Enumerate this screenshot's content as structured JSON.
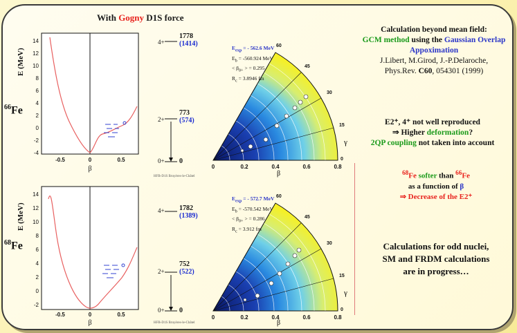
{
  "title": {
    "prefix": "With ",
    "highlight": "Gogny",
    "suffix": " D1S force"
  },
  "colors": {
    "accent_red": "#e8231e",
    "accent_green": "#1a9a1a",
    "accent_blue": "#2a35c8",
    "curve": "#e86060"
  },
  "nuclei": {
    "top": {
      "mass": "66",
      "symbol": "Fe"
    },
    "bottom": {
      "mass": "68",
      "symbol": "Fe"
    }
  },
  "axis": {
    "energy": "E (MeV)",
    "beta": "β",
    "gamma": "γ"
  },
  "top_plot": {
    "yticks": [
      "14",
      "12",
      "10",
      "8",
      "6",
      "4",
      "2",
      "0",
      "-2",
      "-4"
    ],
    "xticks": [
      "-0.5",
      "0",
      "0.5"
    ],
    "caption": "HFB-D1S Bruyères-le-Châtel",
    "levels": [
      {
        "spin": "4+",
        "calc": "1778",
        "exp": "(1414)"
      },
      {
        "spin": "2+",
        "calc": "773",
        "exp": "(574)"
      },
      {
        "spin": "0+",
        "calc": "0",
        "exp": ""
      }
    ],
    "info": {
      "e_exp": "E",
      "e_exp_sub": "exp",
      "e_exp_val": " = - 562.6 MeV",
      "e_b": "E",
      "e_b_sub": "b",
      "e_b_val": " = -560.924 MeV",
      "beta": "< β",
      "beta_sub": "0+",
      "beta_val": " > = 0.295",
      "r": "R",
      "r_sub": "c",
      "r_val": " = 3.8946 fm"
    },
    "polar_ticks": [
      "0",
      "0.2",
      "0.4",
      "0.6",
      "0.8"
    ],
    "angle_ticks": [
      "60",
      "45",
      "30",
      "15",
      "0"
    ]
  },
  "bottom_plot": {
    "yticks": [
      "14",
      "12",
      "10",
      "8",
      "6",
      "4",
      "2",
      "0",
      "-2"
    ],
    "xticks": [
      "-0.5",
      "0",
      "0.5"
    ],
    "caption": "HFB-D1S Bruyères-le-Châtel",
    "levels": [
      {
        "spin": "4+",
        "calc": "1782",
        "exp": "(1389)"
      },
      {
        "spin": "2+",
        "calc": "752",
        "exp": "(522)"
      },
      {
        "spin": "0+",
        "calc": "0",
        "exp": ""
      }
    ],
    "info": {
      "e_exp": "E",
      "e_exp_sub": "exp",
      "e_exp_val": " = - 572.7 MeV",
      "e_b": "E",
      "e_b_sub": "b",
      "e_b_val": " = -570.542 MeV",
      "beta": "< β",
      "beta_sub": "0+",
      "beta_val": " > = 0.286",
      "r": "R",
      "r_sub": "c",
      "r_val": " = 3.912 fm"
    },
    "polar_ticks": [
      "0",
      "0.2",
      "0.4",
      "0.6",
      "0.8"
    ],
    "angle_ticks": [
      "60",
      "45",
      "30",
      "15",
      "0"
    ]
  },
  "right": {
    "calc_title": "Calculation beyond mean field:",
    "gcm": "GCM method",
    "using": " using the ",
    "gaussian": "Gaussian Overlap Appoximation",
    "authors": "J.Libert, M.Girod, J.-P.Delaroche,",
    "ref_pre": "Phys.Rev. ",
    "ref_vol": "C60",
    "ref_post": ", 054301 (1999)",
    "e2_line": "E2⁺, 4⁺ not well reproduced",
    "higher_pre": "⇒ Higher ",
    "deformation": "deformation",
    "higher_post": "?",
    "qp_green": "2QP coupling",
    "qp_rest": " not taken into account",
    "softer_m68": "68",
    "softer_fe": "Fe",
    "softer_word": " softer",
    "softer_than": " than ",
    "softer_m66": "66",
    "softer_fe2": "Fe",
    "func_pre": "as a function of ",
    "func_beta": "β",
    "decrease": "⇒ Decrease of the E2⁺",
    "odd1": "Calculations for odd nuclei,",
    "odd2": "SM and FRDM calculations",
    "odd3": "are in progress…"
  }
}
